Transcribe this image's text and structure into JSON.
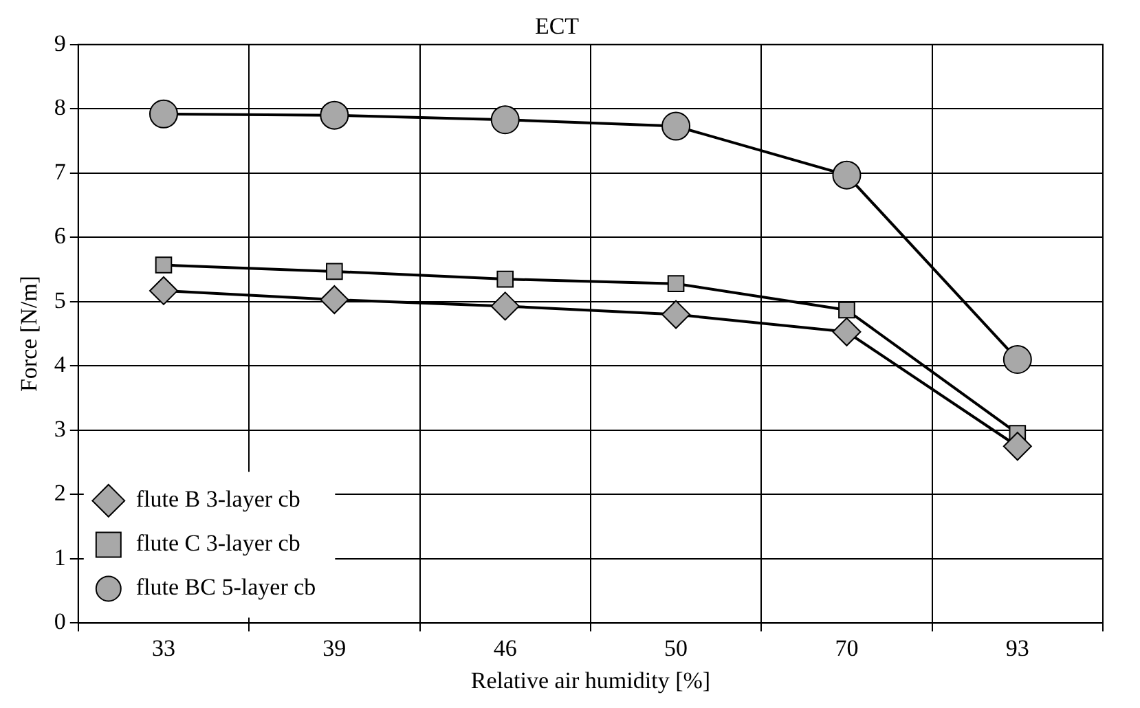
{
  "chart_data": {
    "type": "line",
    "title": "ECT",
    "xlabel": "Relative air humidity [%]",
    "ylabel": "Force [N/m]",
    "categories": [
      "33",
      "39",
      "46",
      "50",
      "70",
      "93"
    ],
    "series": [
      {
        "name": "flute B 3-layer cb",
        "color": "#000000",
        "marker": "diamond",
        "values": [
          5.17,
          5.03,
          4.93,
          4.8,
          4.53,
          2.75
        ]
      },
      {
        "name": "flute C 3-layer cb",
        "color": "#000000",
        "marker": "square",
        "values": [
          5.57,
          5.47,
          5.35,
          5.28,
          4.87,
          2.95
        ]
      },
      {
        "name": "flute BC 5-layer cb",
        "color": "#000000",
        "marker": "circle",
        "values": [
          7.92,
          7.9,
          7.83,
          7.73,
          6.97,
          4.1
        ]
      }
    ],
    "ylim": [
      0,
      9
    ],
    "yticks": [
      0,
      1,
      2,
      3,
      4,
      5,
      6,
      7,
      8,
      9
    ],
    "grid": true,
    "legend": "bottom left",
    "line_style": "solid"
  }
}
